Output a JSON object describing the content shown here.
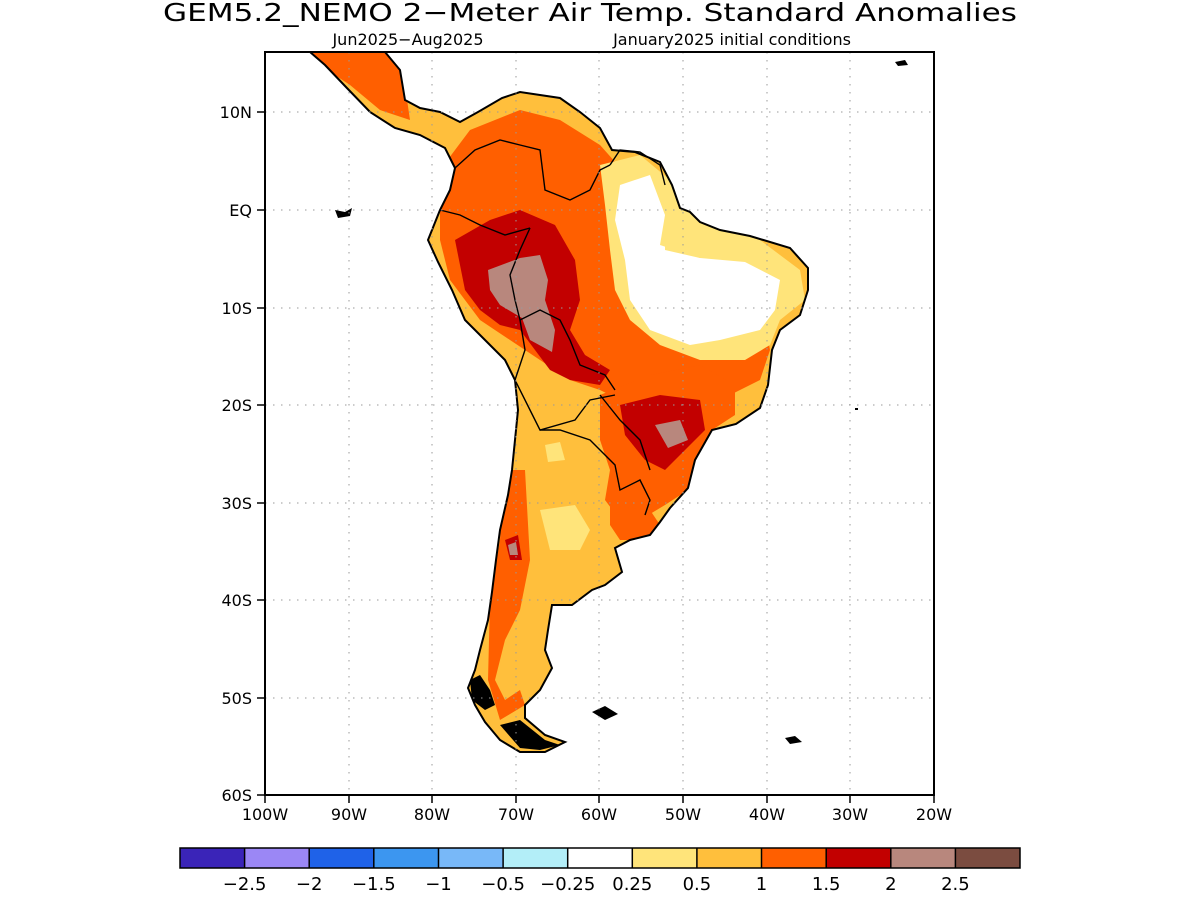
{
  "title": "GEM5.2_NEMO 2−Meter Air Temp. Standard Anomalies",
  "subtitle_left": "Jun2025−Aug2025",
  "subtitle_right": "January2025 initial conditions",
  "map": {
    "region": "South America",
    "lon_range": [
      -100,
      -20
    ],
    "lat_range": [
      -60,
      15
    ],
    "grid": "dotted",
    "lat_ticks": [
      {
        "value": 10,
        "label": "10N"
      },
      {
        "value": 0,
        "label": "EQ"
      },
      {
        "value": -10,
        "label": "10S"
      },
      {
        "value": -20,
        "label": "20S"
      },
      {
        "value": -30,
        "label": "30S"
      },
      {
        "value": -40,
        "label": "40S"
      },
      {
        "value": -50,
        "label": "50S"
      },
      {
        "value": -60,
        "label": "60S"
      }
    ],
    "lon_ticks": [
      {
        "value": -100,
        "label": "100W"
      },
      {
        "value": -90,
        "label": "90W"
      },
      {
        "value": -80,
        "label": "80W"
      },
      {
        "value": -70,
        "label": "70W"
      },
      {
        "value": -60,
        "label": "60W"
      },
      {
        "value": -50,
        "label": "50W"
      },
      {
        "value": -40,
        "label": "40W"
      },
      {
        "value": -30,
        "label": "30W"
      },
      {
        "value": -20,
        "label": "20W"
      }
    ]
  },
  "colorbar": {
    "colors": [
      "#3a24b8",
      "#9b87f5",
      "#1f62e8",
      "#3c96f0",
      "#78b8f8",
      "#b3eef8",
      "#ffffff",
      "#ffe47a",
      "#ffbf3c",
      "#ff5f00",
      "#c20000",
      "#b8877d",
      "#7b4c40"
    ],
    "labels": [
      "−2.5",
      "−2",
      "−1.5",
      "−1",
      "−0.5",
      "−0.25",
      "0.25",
      "0.5",
      "1",
      "1.5",
      "2",
      "2.5"
    ]
  }
}
